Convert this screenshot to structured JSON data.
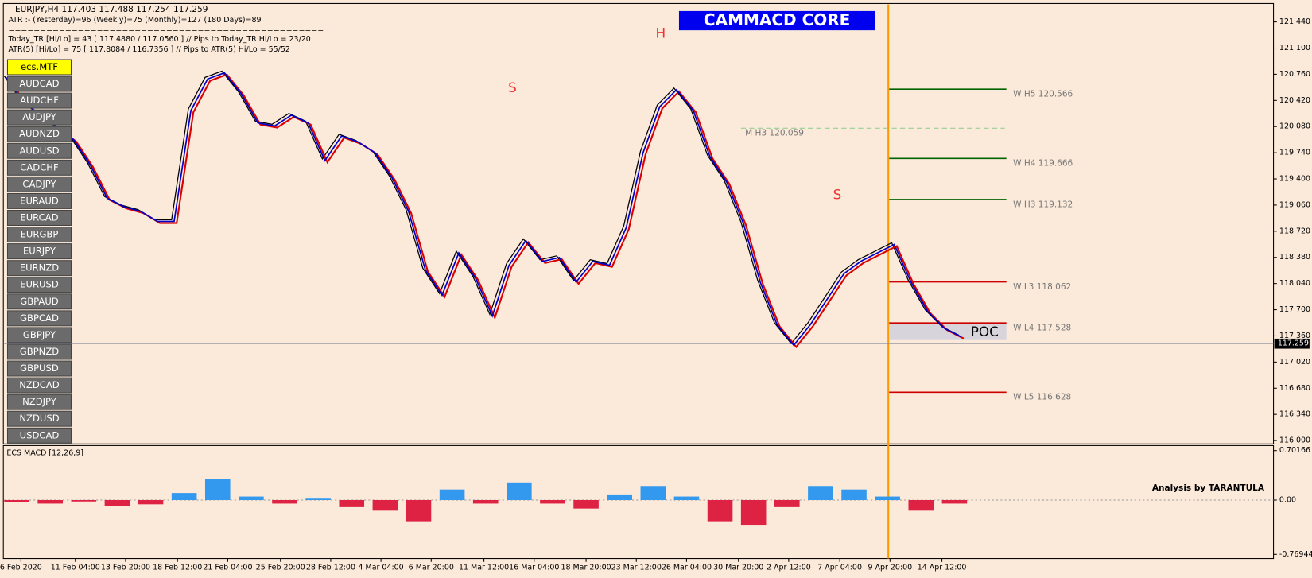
{
  "header": {
    "symbol_line": "EURJPY,H4  117.403 117.488 117.254 117.259",
    "atr_line": "ATR :- (Yesterday)=96      (Weekly)=75      (Monthly)=127      (180 Days)=89",
    "separator": "==================================================",
    "today_line": "Today_TR [Hi/Lo] = 43 [ 117.4880 / 117.0560 ]  // Pips to Today_TR Hi/Lo  = 23/20",
    "atr5_line": "ATR(5)    [Hi/Lo] = 75 [ 117.8084 / 116.7356 ]  // Pips to ATR(5) Hi/Lo      = 55/52"
  },
  "brand": "CAMMACD CORE",
  "credit": "Analysis by TARANTULA",
  "symbols": [
    "ecs.MTF",
    "AUDCAD",
    "AUDCHF",
    "AUDJPY",
    "AUDNZD",
    "AUDUSD",
    "CADCHF",
    "CADJPY",
    "EURAUD",
    "EURCAD",
    "EURGBP",
    "EURJPY",
    "EURNZD",
    "EURUSD",
    "GBPAUD",
    "GBPCAD",
    "GBPJPY",
    "GBPNZD",
    "GBPUSD",
    "NZDCAD",
    "NZDJPY",
    "NZDUSD",
    "USDCAD"
  ],
  "price_chart": {
    "ylim": [
      116.0,
      121.44
    ],
    "yticks": [
      {
        "value": 121.44,
        "label": "121.440"
      },
      {
        "value": 121.1,
        "label": "121.100"
      },
      {
        "value": 120.76,
        "label": "120.760"
      },
      {
        "value": 120.42,
        "label": "120.420"
      },
      {
        "value": 120.08,
        "label": "120.080"
      },
      {
        "value": 119.74,
        "label": "119.740"
      },
      {
        "value": 119.4,
        "label": "119.400"
      },
      {
        "value": 119.06,
        "label": "119.060"
      },
      {
        "value": 118.72,
        "label": "118.720"
      },
      {
        "value": 118.38,
        "label": "118.380"
      },
      {
        "value": 118.04,
        "label": "118.040"
      },
      {
        "value": 117.7,
        "label": "117.700"
      },
      {
        "value": 117.36,
        "label": "117.360"
      },
      {
        "value": 117.02,
        "label": "117.020"
      },
      {
        "value": 116.68,
        "label": "116.680"
      },
      {
        "value": 116.34,
        "label": "116.340"
      },
      {
        "value": 116.0,
        "label": "116.000"
      }
    ],
    "current_price": {
      "value": 117.259,
      "label": "117.259"
    },
    "closes": [
      120.74,
      120.42,
      120.25,
      120.09,
      119.93,
      119.6,
      119.17,
      119.06,
      119.0,
      118.87,
      118.87,
      120.31,
      120.72,
      120.8,
      120.53,
      120.15,
      120.11,
      120.25,
      120.15,
      119.66,
      119.98,
      119.9,
      119.76,
      119.44,
      119.0,
      118.24,
      117.91,
      118.46,
      118.13,
      117.64,
      118.3,
      118.62,
      118.35,
      118.4,
      118.08,
      118.35,
      118.3,
      118.79,
      119.76,
      120.36,
      120.58,
      120.31,
      119.71,
      119.38,
      118.84,
      118.08,
      117.53,
      117.26,
      117.53,
      117.86,
      118.19,
      118.35,
      118.46,
      118.57,
      118.08,
      117.7,
      117.48,
      117.37
    ],
    "levels": [
      {
        "label": "W H5 120.566",
        "value": 120.566,
        "color": "#006400"
      },
      {
        "label": "W H4 119.666",
        "value": 119.666,
        "color": "#006400"
      },
      {
        "label": "W H3 119.132",
        "value": 119.132,
        "color": "#006400"
      },
      {
        "label": "W L3 118.062",
        "value": 118.062,
        "color": "#cc0000"
      },
      {
        "label": "W L4 117.528",
        "value": 117.528,
        "color": "#cc0000"
      },
      {
        "label": "W L5 116.628",
        "value": 116.628,
        "color": "#cc0000"
      }
    ],
    "monthly_level": {
      "label": "M  H3 120.059",
      "value": 120.059
    },
    "poc": "POC",
    "pattern_labels": [
      "H",
      "S",
      "S"
    ]
  },
  "macd": {
    "title": "ECS MACD [12,26,9]",
    "ylim": [
      -0.76944,
      0.70166
    ],
    "yticks": [
      0.70166,
      {
        "value": 0,
        "label": "0.00"
      },
      -0.76944
    ],
    "histogram": [
      -0.03,
      -0.05,
      -0.02,
      -0.08,
      -0.06,
      0.1,
      0.3,
      0.05,
      -0.05,
      0.02,
      -0.1,
      -0.15,
      -0.3,
      0.15,
      -0.05,
      0.25,
      -0.05,
      -0.12,
      0.08,
      0.2,
      0.05,
      -0.3,
      -0.35,
      -0.1,
      0.2,
      0.15,
      0.05,
      -0.15,
      -0.05
    ]
  },
  "x_labels": [
    "6 Feb 2020",
    "11 Feb 04:00",
    "13 Feb 20:00",
    "18 Feb 12:00",
    "21 Feb 04:00",
    "25 Feb 20:00",
    "28 Feb 12:00",
    "4 Mar 04:00",
    "6 Mar 20:00",
    "11 Mar 12:00",
    "16 Mar 04:00",
    "18 Mar 20:00",
    "23 Mar 12:00",
    "26 Mar 04:00",
    "30 Mar 20:00",
    "2 Apr 12:00",
    "7 Apr 04:00",
    "9 Apr 20:00",
    "14 Apr 12:00"
  ]
}
